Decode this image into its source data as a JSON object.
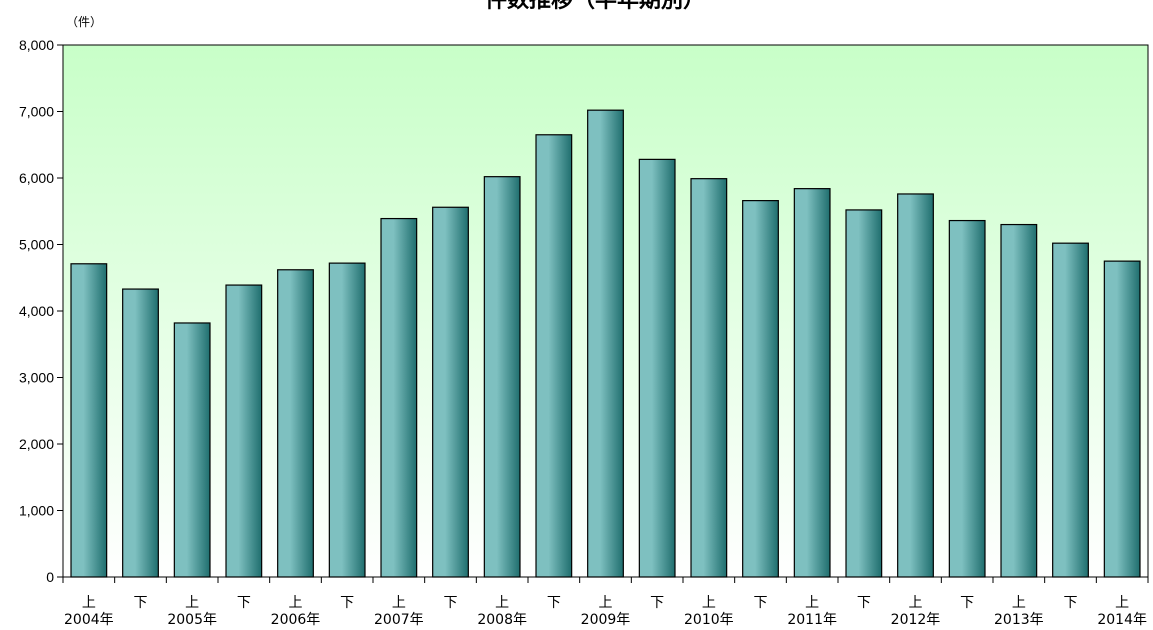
{
  "chart_data": {
    "type": "bar",
    "title": "件数推移（半年期別）",
    "unit_label": "（件）",
    "ylim": [
      0,
      8000
    ],
    "yticks": [
      0,
      1000,
      2000,
      3000,
      4000,
      5000,
      6000,
      7000,
      8000
    ],
    "ytick_labels": [
      "0",
      "1,000",
      "2,000",
      "3,000",
      "4,000",
      "5,000",
      "6,000",
      "7,000",
      "8,000"
    ],
    "categories": [
      {
        "half": "上",
        "year": "2004年"
      },
      {
        "half": "下",
        "year": ""
      },
      {
        "half": "上",
        "year": "2005年"
      },
      {
        "half": "下",
        "year": ""
      },
      {
        "half": "上",
        "year": "2006年"
      },
      {
        "half": "下",
        "year": ""
      },
      {
        "half": "上",
        "year": "2007年"
      },
      {
        "half": "下",
        "year": ""
      },
      {
        "half": "上",
        "year": "2008年"
      },
      {
        "half": "下",
        "year": ""
      },
      {
        "half": "上",
        "year": "2009年"
      },
      {
        "half": "下",
        "year": ""
      },
      {
        "half": "上",
        "year": "2010年"
      },
      {
        "half": "下",
        "year": ""
      },
      {
        "half": "上",
        "year": "2011年"
      },
      {
        "half": "下",
        "year": ""
      },
      {
        "half": "上",
        "year": "2012年"
      },
      {
        "half": "下",
        "year": ""
      },
      {
        "half": "上",
        "year": "2013年"
      },
      {
        "half": "下",
        "year": ""
      },
      {
        "half": "上",
        "year": "2014年"
      }
    ],
    "values": [
      4710,
      4330,
      3820,
      4390,
      4620,
      4720,
      5390,
      5560,
      6020,
      6650,
      7020,
      6280,
      5990,
      5660,
      5840,
      5520,
      5760,
      5360,
      5300,
      5020,
      4750
    ],
    "grid": false,
    "colors": {
      "plot_top": "#c8ffc8",
      "plot_bottom": "#ffffff",
      "bar_light": "#7ec0c0",
      "bar_dark": "#1f6e6e"
    }
  }
}
